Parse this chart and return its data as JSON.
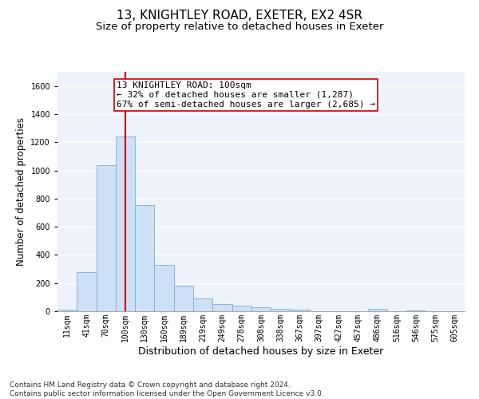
{
  "title": "13, KNIGHTLEY ROAD, EXETER, EX2 4SR",
  "subtitle": "Size of property relative to detached houses in Exeter",
  "xlabel": "Distribution of detached houses by size in Exeter",
  "ylabel": "Number of detached properties",
  "bar_labels": [
    "11sqm",
    "41sqm",
    "70sqm",
    "100sqm",
    "130sqm",
    "160sqm",
    "189sqm",
    "219sqm",
    "249sqm",
    "278sqm",
    "308sqm",
    "338sqm",
    "367sqm",
    "397sqm",
    "427sqm",
    "457sqm",
    "486sqm",
    "516sqm",
    "546sqm",
    "575sqm",
    "605sqm"
  ],
  "bar_values": [
    10,
    280,
    1035,
    1240,
    755,
    330,
    180,
    90,
    50,
    38,
    28,
    18,
    10,
    0,
    0,
    0,
    18,
    0,
    8,
    0,
    0
  ],
  "bar_color": "#cde0f5",
  "bar_edge_color": "#7ab0d8",
  "vline_x_index": 3,
  "vline_color": "#cc0000",
  "annotation_text": "13 KNIGHTLEY ROAD: 100sqm\n← 32% of detached houses are smaller (1,287)\n67% of semi-detached houses are larger (2,685) →",
  "annotation_box_facecolor": "#ffffff",
  "annotation_box_edgecolor": "#cc0000",
  "ylim": [
    0,
    1700
  ],
  "yticks": [
    0,
    200,
    400,
    600,
    800,
    1000,
    1200,
    1400,
    1600
  ],
  "background_color": "#edf2fb",
  "grid_color": "#ffffff",
  "footer_text": "Contains HM Land Registry data © Crown copyright and database right 2024.\nContains public sector information licensed under the Open Government Licence v3.0.",
  "title_fontsize": 11,
  "subtitle_fontsize": 9.5,
  "xlabel_fontsize": 9,
  "ylabel_fontsize": 8.5,
  "tick_fontsize": 7,
  "annotation_fontsize": 8,
  "footer_fontsize": 6.5
}
